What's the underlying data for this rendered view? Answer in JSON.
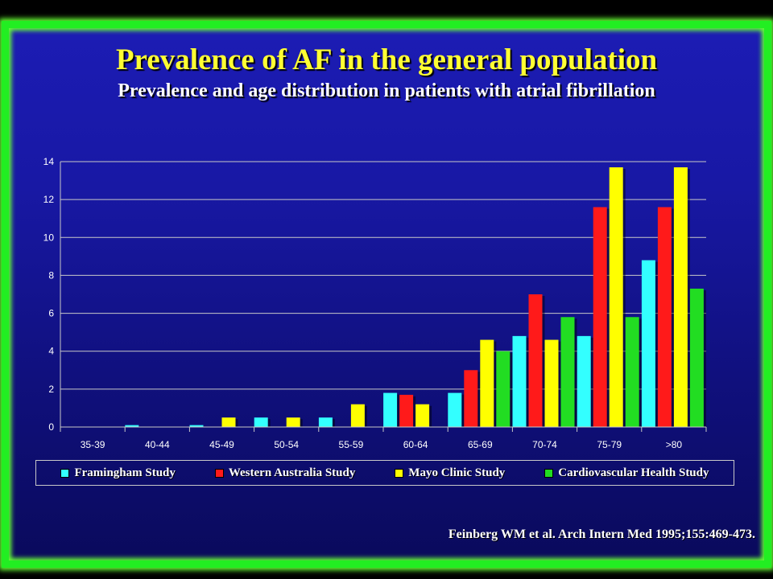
{
  "slide": {
    "title": "Prevalence of AF in the general population",
    "subtitle": "Prevalence and age distribution in patients with atrial fibrillation",
    "citation": "Feinberg WM  et al. Arch Intern Med 1995;155:469-473."
  },
  "colors": {
    "frame": "#22ee22",
    "background": "#1616a0",
    "title": "#ffff33",
    "text": "#ffffff",
    "gridline": "#c8c8c8"
  },
  "chart_data": {
    "type": "bar",
    "title": "",
    "xlabel": "",
    "ylabel": "",
    "ylim": [
      0,
      14
    ],
    "yticks": [
      0,
      2,
      4,
      6,
      8,
      10,
      12,
      14
    ],
    "grid": true,
    "legend_position": "bottom",
    "categories": [
      "35-39",
      "40-44",
      "45-49",
      "50-54",
      "55-59",
      "60-64",
      "65-69",
      "70-74",
      "75-79",
      ">80"
    ],
    "series": [
      {
        "name": "Framingham Study",
        "color": "#33ffff",
        "values": [
          0,
          0.1,
          0.1,
          0.5,
          0.5,
          1.8,
          1.8,
          4.8,
          4.8,
          8.8
        ]
      },
      {
        "name": "Western Australia Study",
        "color": "#ff1a1a",
        "values": [
          0,
          0,
          0,
          0,
          0,
          1.7,
          3.0,
          7.0,
          11.6,
          11.6
        ]
      },
      {
        "name": "Mayo Clinic Study",
        "color": "#ffff00",
        "values": [
          0,
          0,
          0.5,
          0.5,
          1.2,
          1.2,
          4.6,
          4.6,
          13.7,
          13.7
        ]
      },
      {
        "name": "Cardiovascular Health Study",
        "color": "#22dd22",
        "values": [
          0,
          0,
          0,
          0,
          0,
          0,
          4.0,
          5.8,
          5.8,
          7.3
        ]
      }
    ]
  }
}
